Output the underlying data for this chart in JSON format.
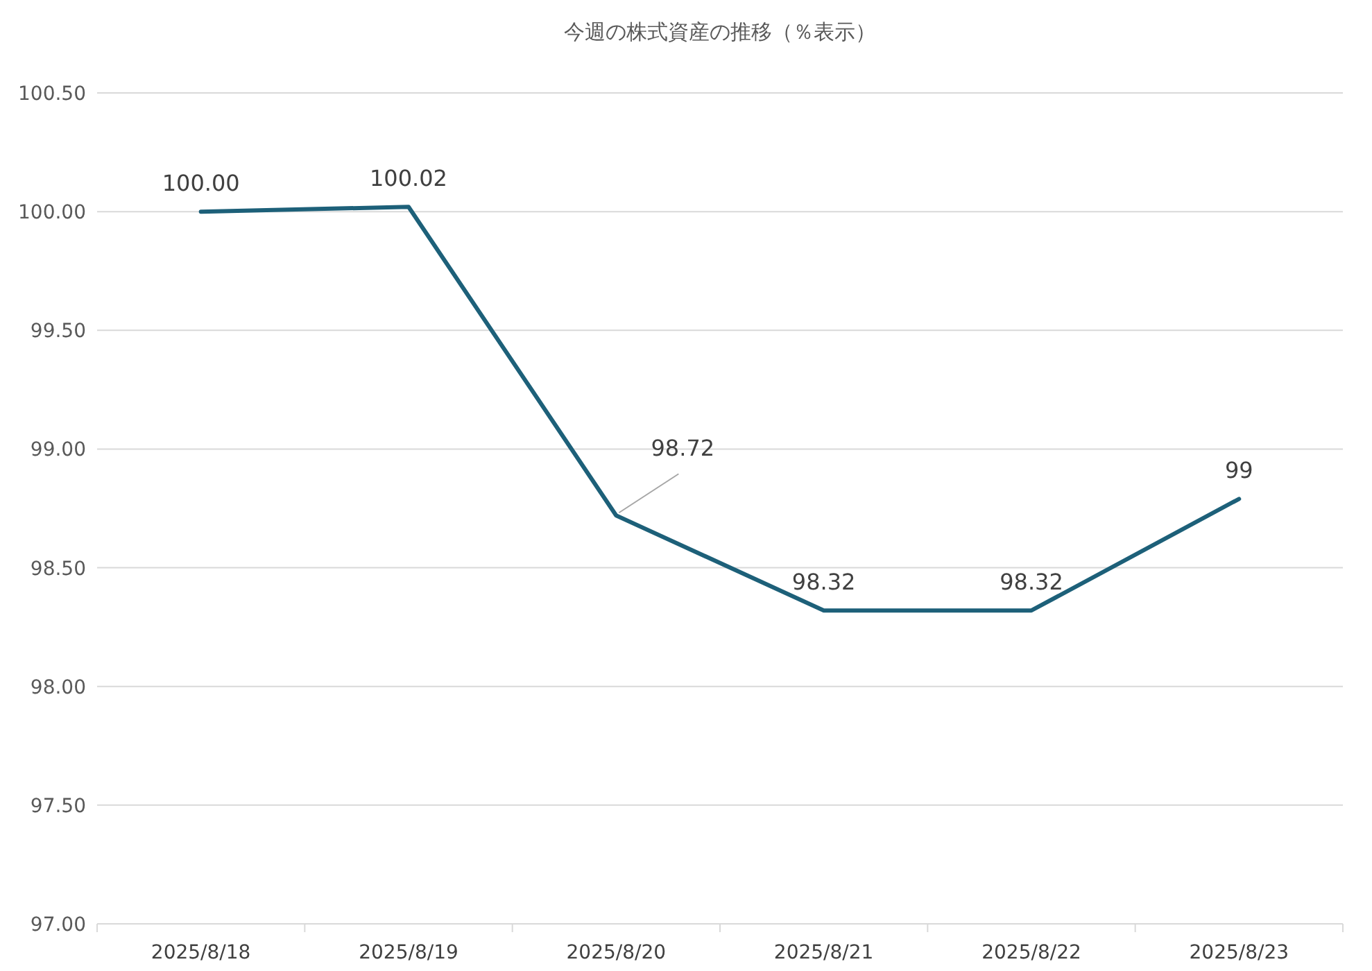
{
  "chart_data": {
    "type": "line",
    "title": "今週の株式資産の推移（％表示）",
    "categories": [
      "2025/8/18",
      "2025/8/19",
      "2025/8/20",
      "2025/8/21",
      "2025/8/22",
      "2025/8/23"
    ],
    "series": [
      {
        "color": "#1d6079",
        "values": [
          100,
          100.02,
          98.72,
          98.32,
          98.32,
          98.79
        ],
        "value_labels": [
          "100.00",
          "100.02",
          "98.72",
          "98.32",
          "98.32",
          "99"
        ]
      }
    ],
    "ylim": [
      97,
      100.5
    ],
    "yticks": [
      {
        "value": 97,
        "label": "97.00"
      },
      {
        "value": 97.5,
        "label": "97.50"
      },
      {
        "value": 98,
        "label": "98.00"
      },
      {
        "value": 98.5,
        "label": "98.50"
      },
      {
        "value": 99,
        "label": "99.00"
      },
      {
        "value": 99.5,
        "label": "99.50"
      },
      {
        "value": 100,
        "label": "100.00"
      },
      {
        "value": 100.5,
        "label": "100.50"
      }
    ],
    "grid": "y",
    "marker": "none",
    "line_style": "solid"
  }
}
